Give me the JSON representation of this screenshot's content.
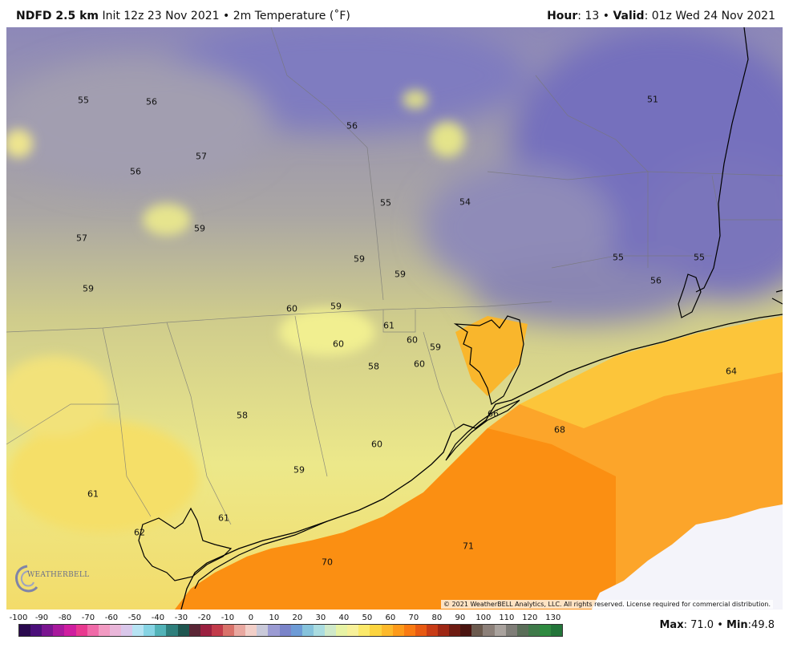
{
  "header": {
    "model": "NDFD 2.5 km",
    "init": "Init 12z 23 Nov 2021",
    "bullet": "•",
    "variable": "2m Temperature (˚F)",
    "hour_label": "Hour",
    "hour_value": ": 13",
    "valid_label": "Valid",
    "valid_value": ": 01z Wed 24 Nov 2021"
  },
  "map": {
    "labels": [
      {
        "text": "55"
      },
      {
        "text": "56"
      },
      {
        "text": "56"
      },
      {
        "text": "57"
      },
      {
        "text": "56"
      },
      {
        "text": "51"
      },
      {
        "text": "55"
      },
      {
        "text": "54"
      },
      {
        "text": "57"
      },
      {
        "text": "59"
      },
      {
        "text": "59"
      },
      {
        "text": "59"
      },
      {
        "text": "59"
      },
      {
        "text": "55"
      },
      {
        "text": "55"
      },
      {
        "text": "56"
      },
      {
        "text": "60"
      },
      {
        "text": "59"
      },
      {
        "text": "61"
      },
      {
        "text": "60"
      },
      {
        "text": "59"
      },
      {
        "text": "60"
      },
      {
        "text": "58"
      },
      {
        "text": "60"
      },
      {
        "text": "64"
      },
      {
        "text": "66"
      },
      {
        "text": "68"
      },
      {
        "text": "58"
      },
      {
        "text": "60"
      },
      {
        "text": "59"
      },
      {
        "text": "61"
      },
      {
        "text": "61"
      },
      {
        "text": "62"
      },
      {
        "text": "71"
      },
      {
        "text": "70"
      }
    ],
    "copyright": "© 2021 WeatherBELL Analytics, LLC. All rights reserved. License required for commercial distribution.",
    "logo_text": "WEATHERBELL",
    "logo_icon": "swirl-logo-icon"
  },
  "scale": {
    "ticks": [
      "-100",
      "-90",
      "-80",
      "-70",
      "-60",
      "-50",
      "-40",
      "-30",
      "-20",
      "-10",
      "0",
      "10",
      "20",
      "30",
      "40",
      "50",
      "60",
      "70",
      "80",
      "90",
      "100",
      "110",
      "120",
      "130"
    ],
    "colors": [
      "#2a0a4e",
      "#4b0f7a",
      "#7a1590",
      "#a8199c",
      "#cf1e9f",
      "#e8398f",
      "#f06aa8",
      "#f29ac2",
      "#e9b6d9",
      "#d9c7ea",
      "#b6e3f3",
      "#86d4e4",
      "#52b3b8",
      "#2e7f7c",
      "#1f5650",
      "#5a2535",
      "#9a2040",
      "#c23b4a",
      "#d9726a",
      "#e9a8a0",
      "#f2cfc8",
      "#c9c9d9",
      "#9b9bd3",
      "#7a84c9",
      "#6d9bd6",
      "#86c3dc",
      "#aadce0",
      "#cfe9c9",
      "#e7f3a5",
      "#f7f19a",
      "#fbe96a",
      "#fcd43f",
      "#fdb92b",
      "#fd9a1a",
      "#f97a12",
      "#e85a12",
      "#c83c16",
      "#9e2714",
      "#6e1b12",
      "#4a1410",
      "#6b5a4e",
      "#8c8079",
      "#a9a29d",
      "#7f7d77",
      "#5a6e58",
      "#3f7a4a",
      "#2e8a40",
      "#23753a"
    ]
  },
  "maxmin": {
    "max_label": "Max",
    "max_value": ": 71.0",
    "bullet": "•",
    "min_label": "Min",
    "min_value": ":49.8"
  }
}
